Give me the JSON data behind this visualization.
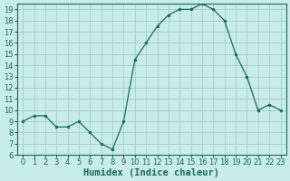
{
  "title": "",
  "xlabel": "Humidex (Indice chaleur)",
  "ylabel": "",
  "x": [
    0,
    1,
    2,
    3,
    4,
    5,
    6,
    7,
    8,
    9,
    10,
    11,
    12,
    13,
    14,
    15,
    16,
    17,
    18,
    19,
    20,
    21,
    22,
    23
  ],
  "y": [
    9,
    9.5,
    9.5,
    8.5,
    8.5,
    9,
    8,
    7,
    6.5,
    9,
    14.5,
    16,
    17.5,
    18.5,
    19,
    19,
    19.5,
    19,
    18,
    15,
    13,
    10,
    10.5,
    10
  ],
  "line_color": "#1a6b5a",
  "marker_color": "#1a6b5a",
  "bg_color": "#c8ece8",
  "grid_color": "#a0c8c4",
  "ylim": [
    6,
    19.5
  ],
  "xlim": [
    -0.5,
    23.5
  ],
  "yticks": [
    6,
    7,
    8,
    9,
    10,
    11,
    12,
    13,
    14,
    15,
    16,
    17,
    18,
    19
  ],
  "xticks": [
    0,
    1,
    2,
    3,
    4,
    5,
    6,
    7,
    8,
    9,
    10,
    11,
    12,
    13,
    14,
    15,
    16,
    17,
    18,
    19,
    20,
    21,
    22,
    23
  ],
  "tick_fontsize": 6,
  "xlabel_fontsize": 7.5
}
